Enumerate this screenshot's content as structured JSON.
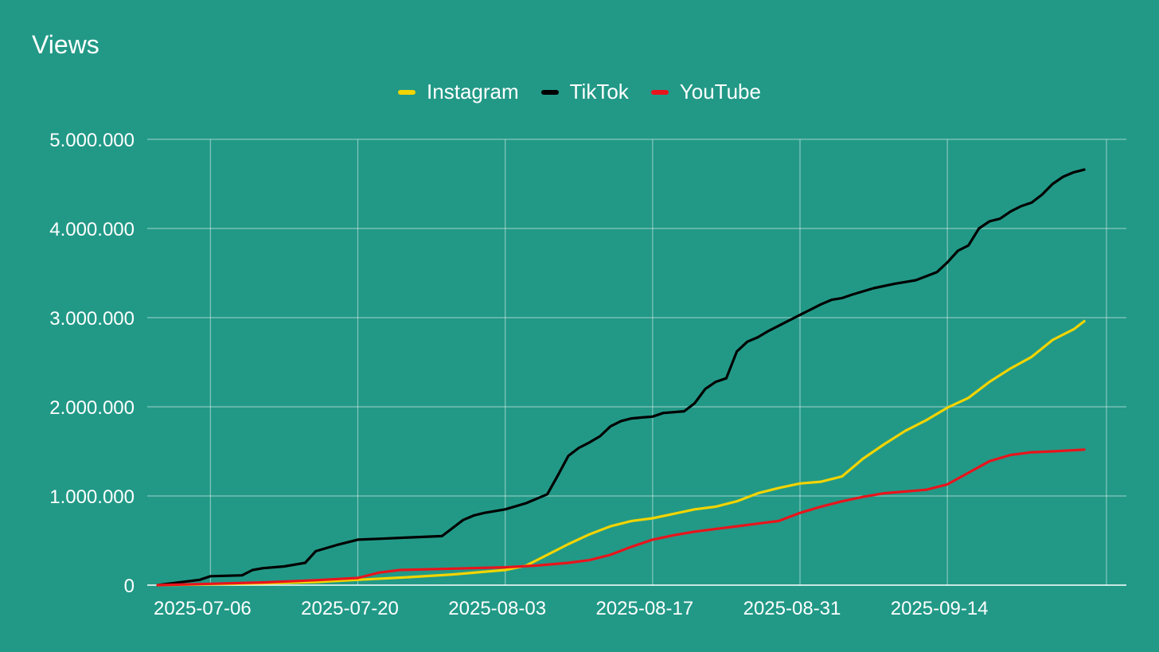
{
  "chart_data": {
    "type": "line",
    "title": "Views",
    "xlabel": "",
    "ylabel": "",
    "ylim": [
      0,
      5000000
    ],
    "y_ticks": [
      0,
      1000000,
      2000000,
      3000000,
      4000000,
      5000000
    ],
    "y_tick_labels": [
      "0",
      "1.000.000",
      "2.000.000",
      "3.000.000",
      "4.000.000",
      "5.000.000"
    ],
    "x_ticks": [
      "2025-07-06",
      "2025-07-20",
      "2025-08-03",
      "2025-08-17",
      "2025-08-31",
      "2025-09-14"
    ],
    "x_range": [
      "2025-06-30",
      "2025-10-01"
    ],
    "grid": true,
    "legend_position": "top-center",
    "background_color": "#229987",
    "series": [
      {
        "name": "Instagram",
        "color": "#f2d400",
        "x": [
          "2025-07-01",
          "2025-07-06",
          "2025-07-11",
          "2025-07-16",
          "2025-07-20",
          "2025-07-25",
          "2025-07-29",
          "2025-08-03",
          "2025-08-05",
          "2025-08-07",
          "2025-08-09",
          "2025-08-11",
          "2025-08-13",
          "2025-08-15",
          "2025-08-17",
          "2025-08-19",
          "2025-08-21",
          "2025-08-23",
          "2025-08-25",
          "2025-08-27",
          "2025-08-29",
          "2025-08-31",
          "2025-09-02",
          "2025-09-04",
          "2025-09-06",
          "2025-09-08",
          "2025-09-10",
          "2025-09-12",
          "2025-09-14",
          "2025-09-16",
          "2025-09-18",
          "2025-09-20",
          "2025-09-22",
          "2025-09-24",
          "2025-09-26",
          "2025-09-27"
        ],
        "y": [
          0,
          10000,
          20000,
          35000,
          60000,
          90000,
          120000,
          170000,
          220000,
          340000,
          460000,
          570000,
          660000,
          720000,
          750000,
          800000,
          850000,
          880000,
          940000,
          1030000,
          1090000,
          1140000,
          1160000,
          1220000,
          1420000,
          1580000,
          1730000,
          1850000,
          1990000,
          2100000,
          2280000,
          2430000,
          2560000,
          2750000,
          2870000,
          2960000
        ]
      },
      {
        "name": "TikTok",
        "color": "#000000",
        "x": [
          "2025-07-01",
          "2025-07-03",
          "2025-07-05",
          "2025-07-06",
          "2025-07-09",
          "2025-07-10",
          "2025-07-11",
          "2025-07-13",
          "2025-07-15",
          "2025-07-16",
          "2025-07-18",
          "2025-07-20",
          "2025-07-22",
          "2025-07-24",
          "2025-07-26",
          "2025-07-28",
          "2025-07-30",
          "2025-07-31",
          "2025-08-01",
          "2025-08-03",
          "2025-08-05",
          "2025-08-07",
          "2025-08-08",
          "2025-08-09",
          "2025-08-10",
          "2025-08-11",
          "2025-08-12",
          "2025-08-13",
          "2025-08-14",
          "2025-08-15",
          "2025-08-16",
          "2025-08-17",
          "2025-08-18",
          "2025-08-20",
          "2025-08-21",
          "2025-08-22",
          "2025-08-23",
          "2025-08-24",
          "2025-08-25",
          "2025-08-26",
          "2025-08-27",
          "2025-08-28",
          "2025-08-29",
          "2025-08-31",
          "2025-09-01",
          "2025-09-02",
          "2025-09-03",
          "2025-09-04",
          "2025-09-05",
          "2025-09-07",
          "2025-09-09",
          "2025-09-11",
          "2025-09-13",
          "2025-09-14",
          "2025-09-15",
          "2025-09-16",
          "2025-09-17",
          "2025-09-18",
          "2025-09-19",
          "2025-09-20",
          "2025-09-21",
          "2025-09-22",
          "2025-09-23",
          "2025-09-24",
          "2025-09-25",
          "2025-09-26",
          "2025-09-27"
        ],
        "y": [
          0,
          30000,
          60000,
          100000,
          110000,
          170000,
          190000,
          210000,
          250000,
          380000,
          450000,
          510000,
          520000,
          530000,
          540000,
          550000,
          730000,
          780000,
          810000,
          850000,
          920000,
          1020000,
          1230000,
          1450000,
          1540000,
          1600000,
          1670000,
          1780000,
          1840000,
          1870000,
          1880000,
          1890000,
          1930000,
          1950000,
          2040000,
          2200000,
          2280000,
          2320000,
          2620000,
          2730000,
          2780000,
          2850000,
          2910000,
          3030000,
          3090000,
          3150000,
          3200000,
          3220000,
          3260000,
          3330000,
          3380000,
          3420000,
          3510000,
          3620000,
          3750000,
          3810000,
          4000000,
          4080000,
          4110000,
          4190000,
          4250000,
          4290000,
          4380000,
          4500000,
          4580000,
          4630000,
          4660000
        ]
      },
      {
        "name": "YouTube",
        "color": "#e8141c",
        "x": [
          "2025-07-01",
          "2025-07-06",
          "2025-07-11",
          "2025-07-16",
          "2025-07-20",
          "2025-07-22",
          "2025-07-24",
          "2025-07-29",
          "2025-08-03",
          "2025-08-06",
          "2025-08-09",
          "2025-08-11",
          "2025-08-13",
          "2025-08-15",
          "2025-08-17",
          "2025-08-19",
          "2025-08-21",
          "2025-08-23",
          "2025-08-25",
          "2025-08-27",
          "2025-08-29",
          "2025-08-31",
          "2025-09-02",
          "2025-09-04",
          "2025-09-06",
          "2025-09-08",
          "2025-09-10",
          "2025-09-12",
          "2025-09-14",
          "2025-09-16",
          "2025-09-18",
          "2025-09-20",
          "2025-09-22",
          "2025-09-24",
          "2025-09-27"
        ],
        "y": [
          0,
          15000,
          30000,
          55000,
          80000,
          140000,
          170000,
          185000,
          200000,
          220000,
          250000,
          280000,
          340000,
          430000,
          510000,
          560000,
          600000,
          630000,
          660000,
          690000,
          720000,
          810000,
          880000,
          940000,
          990000,
          1030000,
          1050000,
          1070000,
          1130000,
          1260000,
          1390000,
          1460000,
          1490000,
          1500000,
          1520000
        ]
      }
    ]
  }
}
